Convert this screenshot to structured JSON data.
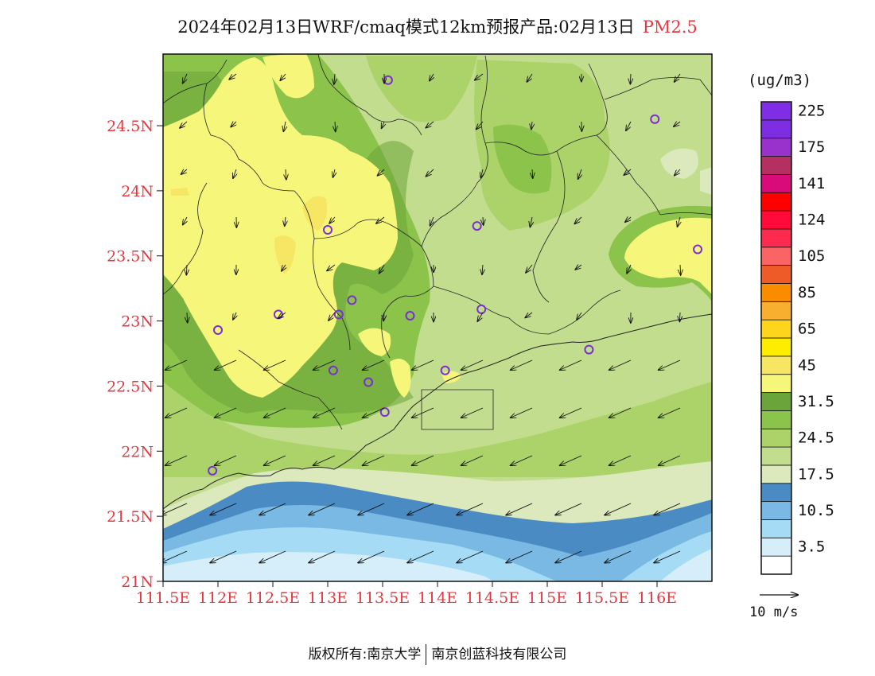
{
  "title": {
    "text": "2024年02月13日WRF/cmaq模式12km预报产品:02月13日",
    "pollutant": "PM2.5"
  },
  "axes": {
    "lat_ticks": [
      "24.5N",
      "24N",
      "23.5N",
      "23N",
      "22.5N",
      "22N",
      "21.5N",
      "21N"
    ],
    "lon_ticks": [
      "111.5E",
      "112E",
      "112.5E",
      "113E",
      "113.5E",
      "114E",
      "114.5E",
      "115E",
      "115.5E",
      "116E"
    ],
    "lat_range": [
      21,
      25.05
    ],
    "lon_range": [
      111.5,
      116.5
    ]
  },
  "legend": {
    "unit": "(ug/m3)",
    "levels": [
      {
        "label": "",
        "color": "#ffffff"
      },
      {
        "label": "3.5",
        "color": "#d6eefa"
      },
      {
        "label": "",
        "color": "#a5dbf5"
      },
      {
        "label": "10.5",
        "color": "#79b9e3"
      },
      {
        "label": "",
        "color": "#4a8bc3"
      },
      {
        "label": "17.5",
        "color": "#dbe9bc"
      },
      {
        "label": "",
        "color": "#c3dd8f"
      },
      {
        "label": "24.5",
        "color": "#acd26a"
      },
      {
        "label": "",
        "color": "#8bc34b"
      },
      {
        "label": "31.5",
        "color": "#6ba43a"
      },
      {
        "label": "",
        "color": "#f6f77a"
      },
      {
        "label": "45",
        "color": "#f6e664"
      },
      {
        "label": "",
        "color": "#ffed00"
      },
      {
        "label": "65",
        "color": "#fdd51c"
      },
      {
        "label": "",
        "color": "#f8ae2f"
      },
      {
        "label": "85",
        "color": "#fb8c00"
      },
      {
        "label": "",
        "color": "#ee5a28"
      },
      {
        "label": "105",
        "color": "#fb6464"
      },
      {
        "label": "",
        "color": "#ff2a4d"
      },
      {
        "label": "124",
        "color": "#ff0a3a"
      },
      {
        "label": "",
        "color": "#ff0000"
      },
      {
        "label": "141",
        "color": "#d90a7a"
      },
      {
        "label": "",
        "color": "#b33060"
      },
      {
        "label": "175",
        "color": "#9932cc"
      },
      {
        "label": "",
        "color": "#7d2ee0"
      },
      {
        "label": "225",
        "color": "#7f2ee6"
      }
    ],
    "wind_scale": "10 m/s"
  },
  "stations": [
    {
      "lon": 113.55,
      "lat": 24.85
    },
    {
      "lon": 115.98,
      "lat": 24.55
    },
    {
      "lon": 114.36,
      "lat": 23.73
    },
    {
      "lon": 113.0,
      "lat": 23.7
    },
    {
      "lon": 116.37,
      "lat": 23.55
    },
    {
      "lon": 112.55,
      "lat": 23.05
    },
    {
      "lon": 113.1,
      "lat": 23.05
    },
    {
      "lon": 113.22,
      "lat": 23.16
    },
    {
      "lon": 113.75,
      "lat": 23.04
    },
    {
      "lon": 114.4,
      "lat": 23.09
    },
    {
      "lon": 112.0,
      "lat": 22.93
    },
    {
      "lon": 115.38,
      "lat": 22.78
    },
    {
      "lon": 113.05,
      "lat": 22.62
    },
    {
      "lon": 113.37,
      "lat": 22.53
    },
    {
      "lon": 114.07,
      "lat": 22.62
    },
    {
      "lon": 113.52,
      "lat": 22.3
    },
    {
      "lon": 111.95,
      "lat": 21.85
    }
  ],
  "copyright": {
    "left": "版权所有:南京大学",
    "right": "南京创蓝科技有限公司"
  },
  "colors": {
    "tick_label": "#e8363f",
    "station": "#7b2fd0"
  }
}
